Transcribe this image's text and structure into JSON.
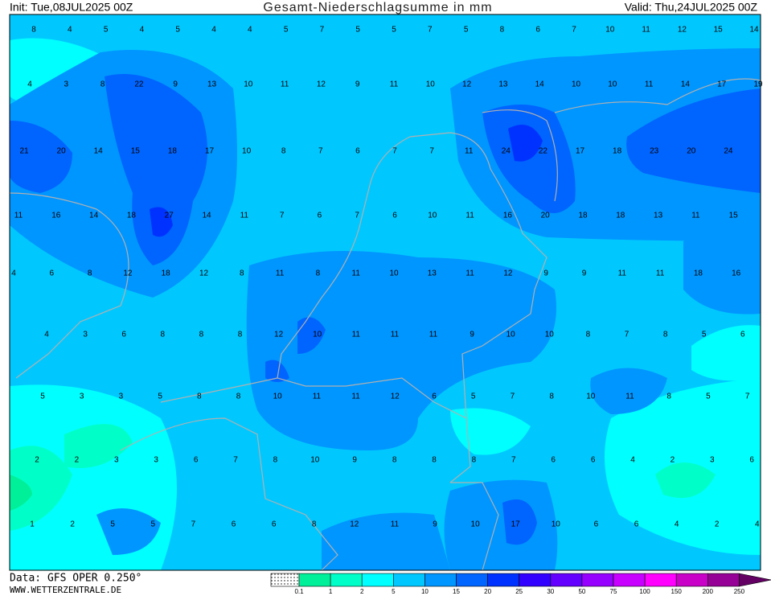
{
  "header": {
    "init": "Init: Tue,08JUL2025 00Z",
    "title": "Gesamt-Niederschlagsumme in mm",
    "valid": "Valid: Thu,24JUL2025 00Z"
  },
  "grid_rows": [
    [
      8,
      4,
      5,
      4,
      5,
      4,
      4,
      5,
      7,
      5,
      5,
      7,
      5,
      8,
      6,
      7,
      10,
      11,
      12,
      15,
      14
    ],
    [
      4,
      3,
      8,
      22,
      9,
      13,
      10,
      11,
      12,
      9,
      11,
      10,
      12,
      13,
      14,
      10,
      10,
      11,
      14,
      17,
      19
    ],
    [
      21,
      20,
      14,
      15,
      18,
      17,
      10,
      8,
      7,
      6,
      7,
      7,
      11,
      24,
      22,
      17,
      18,
      23,
      20,
      24
    ],
    [
      11,
      16,
      14,
      18,
      27,
      14,
      11,
      7,
      6,
      7,
      6,
      10,
      11,
      16,
      20,
      18,
      18,
      13,
      11,
      15
    ],
    [
      4,
      6,
      8,
      12,
      18,
      12,
      8,
      11,
      8,
      11,
      10,
      13,
      11,
      12,
      9,
      9,
      11,
      11,
      18,
      16
    ],
    [
      4,
      3,
      6,
      8,
      8,
      8,
      12,
      10,
      11,
      11,
      11,
      9,
      10,
      10,
      8,
      7,
      8,
      5,
      6
    ],
    [
      5,
      3,
      3,
      5,
      8,
      8,
      10,
      11,
      11,
      12,
      6,
      5,
      7,
      8,
      10,
      11,
      8,
      5,
      7
    ],
    [
      2,
      2,
      3,
      3,
      6,
      7,
      8,
      10,
      9,
      8,
      8,
      8,
      7,
      6,
      6,
      4,
      2,
      3,
      6
    ],
    [
      1,
      2,
      5,
      5,
      7,
      6,
      6,
      8,
      12,
      11,
      9,
      10,
      17,
      10,
      6,
      6,
      4,
      2,
      4
    ]
  ],
  "legend": {
    "ticks": [
      0.1,
      1,
      2,
      5,
      10,
      15,
      20,
      25,
      30,
      50,
      75,
      100,
      150,
      200,
      250
    ],
    "colors": [
      "#00f09a",
      "#00ffc8",
      "#00ffff",
      "#00c8ff",
      "#0096ff",
      "#0064ff",
      "#0032ff",
      "#3200ff",
      "#6400ff",
      "#9600ff",
      "#c800ff",
      "#ff00ff",
      "#c800c8",
      "#960096"
    ],
    "over_color": "#640064"
  },
  "footer": {
    "data": "Data: GFS OPER 0.250°",
    "site": "WWW.WETTERZENTRALE.DE"
  }
}
